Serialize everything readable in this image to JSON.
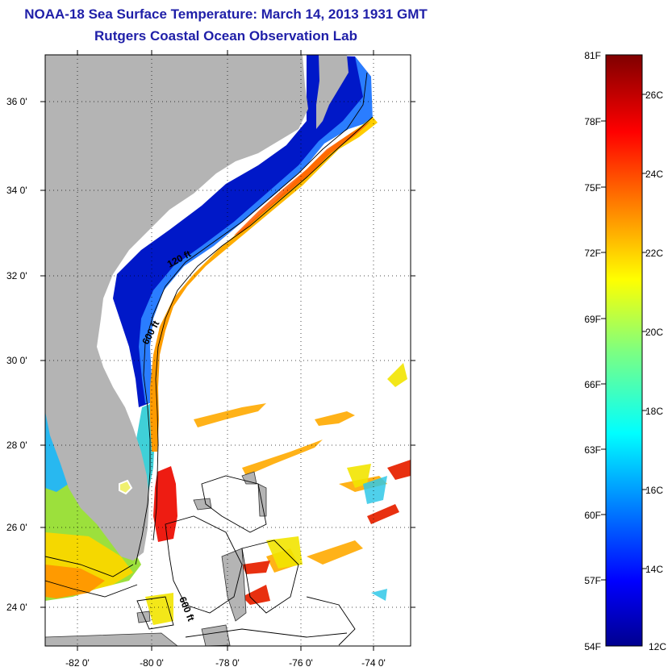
{
  "header": {
    "title": "NOAA-18 Sea Surface Temperature:  March 14, 2013 1931 GMT",
    "subtitle": "Rutgers Coastal Ocean Observation Lab"
  },
  "map": {
    "lon_ticks": [
      "-82 0'",
      "-80 0'",
      "-78 0'",
      "-76 0'",
      "-74 0'"
    ],
    "lat_ticks": [
      "36 0'",
      "34 0'",
      "32 0'",
      "30 0'",
      "28 0'",
      "26 0'",
      "24 0'"
    ],
    "contour_labels": [
      "120 ft",
      "600 ft",
      "600 ft"
    ]
  },
  "colorbar": {
    "fahrenheit": [
      "81F",
      "78F",
      "75F",
      "72F",
      "69F",
      "66F",
      "63F",
      "60F",
      "57F",
      "54F"
    ],
    "celsius": [
      "26C",
      "24C",
      "22C",
      "20C",
      "18C",
      "16C",
      "14C",
      "12C"
    ]
  },
  "colors": {
    "title": "#1f1fa8",
    "land": "#b4b4b4",
    "ocean": "#ffffff",
    "cold": "#00008f",
    "warm": "#8b0000"
  }
}
